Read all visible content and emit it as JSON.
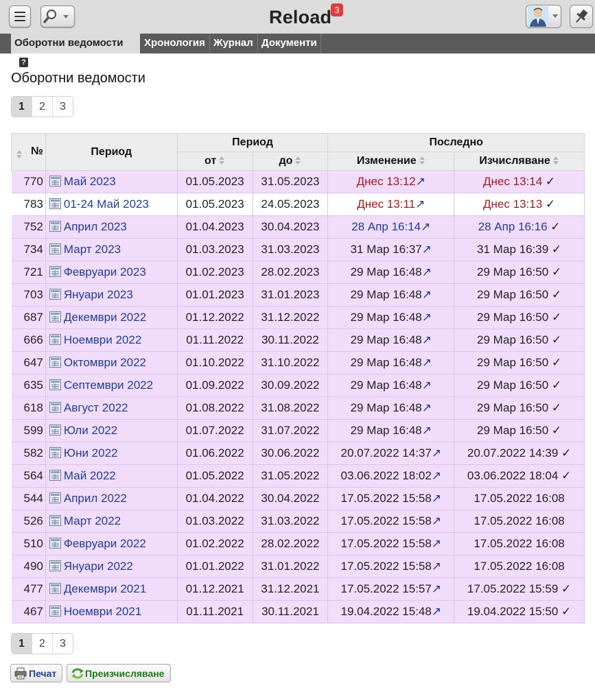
{
  "header": {
    "title": "Reload",
    "notifications": "3",
    "icons": [
      "menu-icon",
      "search-icon",
      "user-avatar-icon",
      "pin-icon"
    ]
  },
  "tabs": [
    {
      "label": "Оборотни ведомости",
      "active": true,
      "help": "?"
    },
    {
      "label": "Хронология",
      "active": false
    },
    {
      "label": "Журнал",
      "active": false
    },
    {
      "label": "Документи",
      "active": false
    }
  ],
  "page_title": "Оборотни ведомости",
  "pagination": {
    "pages": [
      "1",
      "2",
      "3"
    ],
    "current": "1"
  },
  "table": {
    "headers": {
      "num": "№",
      "period": "Период",
      "period_group": "Период",
      "from": "от",
      "to": "до",
      "last_group": "Последно",
      "changed": "Изменение",
      "calculated": "Изчисляване"
    },
    "rows": [
      {
        "num": "770",
        "period": "Май 2023",
        "from": "01.05.2023",
        "to": "31.05.2023",
        "changed": "Днес 13:12",
        "calculated": "Днес 13:14",
        "check": "✓",
        "changed_style": "red",
        "calc_style": "red"
      },
      {
        "num": "783",
        "period": "01-24 Май 2023",
        "from": "01.05.2023",
        "to": "24.05.2023",
        "changed": "Днес 13:11",
        "calculated": "Днес 13:13",
        "check": "✓",
        "changed_style": "red",
        "calc_style": "red",
        "white": true
      },
      {
        "num": "752",
        "period": "Април 2023",
        "from": "01.04.2023",
        "to": "30.04.2023",
        "changed": "28 Апр 16:14",
        "calculated": "28 Апр 16:16",
        "check": "✓",
        "changed_style": "link",
        "calc_style": "link"
      },
      {
        "num": "734",
        "period": "Март 2023",
        "from": "01.03.2023",
        "to": "31.03.2023",
        "changed": "31 Мар 16:37",
        "calculated": "31 Мар 16:39",
        "check": "✓",
        "changed_style": "plain",
        "calc_style": "plain"
      },
      {
        "num": "721",
        "period": "Февруари 2023",
        "from": "01.02.2023",
        "to": "28.02.2023",
        "changed": "29 Мар 16:48",
        "calculated": "29 Мар 16:50",
        "check": "✓",
        "changed_style": "plain",
        "calc_style": "plain"
      },
      {
        "num": "703",
        "period": "Януари 2023",
        "from": "01.01.2023",
        "to": "31.01.2023",
        "changed": "29 Мар 16:48",
        "calculated": "29 Мар 16:50",
        "check": "✓",
        "changed_style": "plain",
        "calc_style": "plain"
      },
      {
        "num": "687",
        "period": "Декември 2022",
        "from": "01.12.2022",
        "to": "31.12.2022",
        "changed": "29 Мар 16:48",
        "calculated": "29 Мар 16:50",
        "check": "✓",
        "changed_style": "plain",
        "calc_style": "plain"
      },
      {
        "num": "666",
        "period": "Ноември 2022",
        "from": "01.11.2022",
        "to": "30.11.2022",
        "changed": "29 Мар 16:48",
        "calculated": "29 Мар 16:50",
        "check": "✓",
        "changed_style": "plain",
        "calc_style": "plain"
      },
      {
        "num": "647",
        "period": "Октомври 2022",
        "from": "01.10.2022",
        "to": "31.10.2022",
        "changed": "29 Мар 16:48",
        "calculated": "29 Мар 16:50",
        "check": "✓",
        "changed_style": "plain",
        "calc_style": "plain"
      },
      {
        "num": "635",
        "period": "Септември 2022",
        "from": "01.09.2022",
        "to": "30.09.2022",
        "changed": "29 Мар 16:48",
        "calculated": "29 Мар 16:50",
        "check": "✓",
        "changed_style": "plain",
        "calc_style": "plain"
      },
      {
        "num": "618",
        "period": "Август 2022",
        "from": "01.08.2022",
        "to": "31.08.2022",
        "changed": "29 Мар 16:48",
        "calculated": "29 Мар 16:50",
        "check": "✓",
        "changed_style": "plain",
        "calc_style": "plain"
      },
      {
        "num": "599",
        "period": "Юли 2022",
        "from": "01.07.2022",
        "to": "31.07.2022",
        "changed": "29 Мар 16:48",
        "calculated": "29 Мар 16:50",
        "check": "✓",
        "changed_style": "plain",
        "calc_style": "plain"
      },
      {
        "num": "582",
        "period": "Юни 2022",
        "from": "01.06.2022",
        "to": "30.06.2022",
        "changed": "20.07.2022 14:37",
        "calculated": "20.07.2022 14:39",
        "check": "✓",
        "changed_style": "plain",
        "calc_style": "plain"
      },
      {
        "num": "564",
        "period": "Май 2022",
        "from": "01.05.2022",
        "to": "31.05.2022",
        "changed": "03.06.2022 18:02",
        "calculated": "03.06.2022 18:04",
        "check": "✓",
        "changed_style": "plain",
        "calc_style": "plain"
      },
      {
        "num": "544",
        "period": "Април 2022",
        "from": "01.04.2022",
        "to": "30.04.2022",
        "changed": "17.05.2022 15:58",
        "calculated": "17.05.2022 16:08",
        "check": "",
        "changed_style": "plain",
        "calc_style": "plain"
      },
      {
        "num": "526",
        "period": "Март 2022",
        "from": "01.03.2022",
        "to": "31.03.2022",
        "changed": "17.05.2022 15:58",
        "calculated": "17.05.2022 16:08",
        "check": "",
        "changed_style": "plain",
        "calc_style": "plain"
      },
      {
        "num": "510",
        "period": "Февруари 2022",
        "from": "01.02.2022",
        "to": "28.02.2022",
        "changed": "17.05.2022 15:58",
        "calculated": "17.05.2022 16:08",
        "check": "",
        "changed_style": "plain",
        "calc_style": "plain"
      },
      {
        "num": "490",
        "period": "Януари 2022",
        "from": "01.01.2022",
        "to": "31.01.2022",
        "changed": "17.05.2022 15:58",
        "calculated": "17.05.2022 16:08",
        "check": "",
        "changed_style": "plain",
        "calc_style": "plain"
      },
      {
        "num": "477",
        "period": "Декември 2021",
        "from": "01.12.2021",
        "to": "31.12.2021",
        "changed": "17.05.2022 15:57",
        "calculated": "17.05.2022 15:59",
        "check": "✓",
        "changed_style": "plain",
        "calc_style": "plain"
      },
      {
        "num": "467",
        "period": "Ноември 2021",
        "from": "01.11.2021",
        "to": "30.11.2021",
        "changed": "19.04.2022 15:48",
        "calculated": "19.04.2022 15:50",
        "check": "✓",
        "changed_style": "plain",
        "calc_style": "plain"
      }
    ],
    "arrow_glyph": "↗"
  },
  "buttons": {
    "print": "Печат",
    "recalc": "Преизчисляване"
  },
  "colors": {
    "row_bg": "#f1dcfb",
    "link": "#1f3f8f",
    "recent": "#9b1b1b",
    "tabbar": "#5b5b5b",
    "recalc_text": "#1f7a1f"
  }
}
